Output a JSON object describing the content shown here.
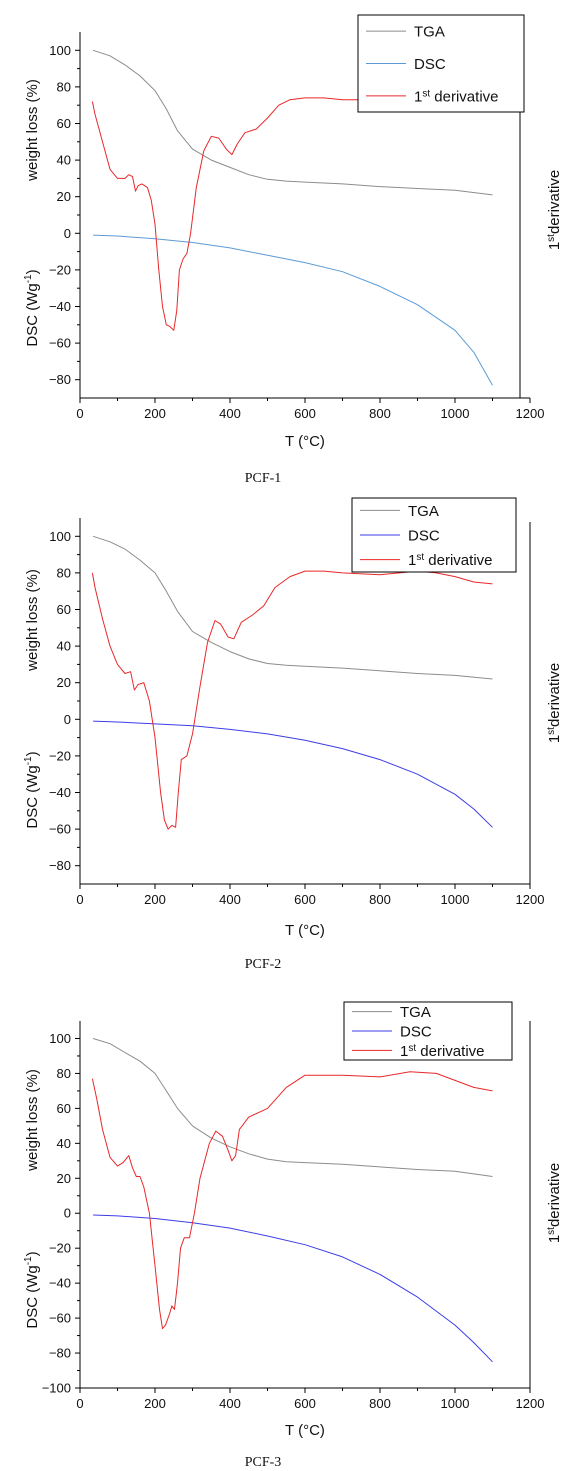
{
  "figure": {
    "captions": [
      "PCF-1",
      "PCF-2",
      "PCF-3"
    ]
  },
  "chart_data": [
    {
      "type": "line",
      "caption": "PCF-1",
      "xlabel": "T (°C)",
      "ylabel_top": "weight loss (%)",
      "ylabel_bottom": "DSC (Wg⁻¹)",
      "ylabel_right": "1st derivative",
      "xlim": [
        0,
        1200
      ],
      "ylim": [
        -90,
        110
      ],
      "xticks": [
        0,
        200,
        400,
        600,
        800,
        1000,
        1200
      ],
      "yticks": [
        100,
        80,
        60,
        40,
        20,
        0,
        -20,
        -40,
        -60,
        -80
      ],
      "grid": false,
      "legend_position": "top-right",
      "series": [
        {
          "name": "TGA",
          "color": "#8c8c8c",
          "x": [
            35,
            80,
            120,
            160,
            200,
            230,
            260,
            300,
            350,
            400,
            450,
            500,
            550,
            600,
            700,
            800,
            900,
            1000,
            1100
          ],
          "y": [
            100,
            97,
            92,
            86,
            78,
            68,
            56,
            46,
            40,
            36,
            32,
            29.5,
            28.5,
            28,
            27,
            25.5,
            24.5,
            23.5,
            21
          ]
        },
        {
          "name": "DSC",
          "color": "#5b9bd5",
          "x": [
            35,
            100,
            200,
            300,
            400,
            500,
            600,
            700,
            800,
            900,
            1000,
            1050,
            1100
          ],
          "y": [
            -1,
            -1.5,
            -3,
            -5,
            -8,
            -12,
            -16,
            -21,
            -29,
            -39,
            -53,
            -65,
            -83
          ]
        },
        {
          "name": "1st derivative",
          "name_base": "1",
          "name_sup": "st",
          "name_rest": " derivative",
          "color": "#e8282a",
          "x": [
            33,
            40,
            60,
            80,
            100,
            120,
            130,
            140,
            148,
            155,
            165,
            180,
            190,
            200,
            210,
            220,
            230,
            240,
            250,
            258,
            265,
            275,
            285,
            295,
            310,
            330,
            350,
            370,
            390,
            405,
            420,
            440,
            470,
            500,
            530,
            560,
            600,
            650,
            700,
            800,
            900,
            950,
            1000,
            1050,
            1100
          ],
          "y": [
            72,
            65,
            50,
            35,
            30,
            30,
            32,
            31,
            23,
            26,
            27,
            25,
            18,
            5,
            -20,
            -40,
            -50,
            -51,
            -53,
            -42,
            -20,
            -14,
            -11,
            0,
            25,
            45,
            53,
            52,
            46,
            43,
            49,
            55,
            57,
            63,
            70,
            73,
            74,
            74,
            73,
            73,
            74,
            73,
            71,
            70,
            70
          ]
        }
      ]
    },
    {
      "type": "line",
      "caption": "PCF-2",
      "xlabel": "T (°C)",
      "ylabel_top": "weight loss (%)",
      "ylabel_bottom": "DSC (Wg⁻¹)",
      "ylabel_right": "1st derivative",
      "xlim": [
        0,
        1200
      ],
      "ylim": [
        -90,
        110
      ],
      "xticks": [
        0,
        200,
        400,
        600,
        800,
        1000,
        1200
      ],
      "yticks": [
        100,
        80,
        60,
        40,
        20,
        0,
        -20,
        -40,
        -60,
        -80
      ],
      "grid": false,
      "legend_position": "top-right",
      "series": [
        {
          "name": "TGA",
          "color": "#8c8c8c",
          "x": [
            35,
            80,
            120,
            160,
            200,
            230,
            260,
            300,
            350,
            400,
            450,
            500,
            550,
            600,
            700,
            800,
            900,
            1000,
            1100
          ],
          "y": [
            100,
            97,
            93,
            87,
            80,
            70,
            59,
            48,
            42,
            37,
            33,
            30.5,
            29.5,
            29,
            28,
            26.5,
            25,
            24,
            22
          ]
        },
        {
          "name": "DSC",
          "color": "#3d3de8",
          "x": [
            35,
            100,
            200,
            300,
            400,
            500,
            600,
            700,
            800,
            900,
            1000,
            1050,
            1100
          ],
          "y": [
            -1,
            -1.5,
            -2.5,
            -3.5,
            -5.5,
            -8,
            -11.5,
            -16,
            -22,
            -30,
            -41,
            -49,
            -59
          ]
        },
        {
          "name": "1st derivative",
          "name_base": "1",
          "name_sup": "st",
          "name_rest": " derivative",
          "color": "#e8282a",
          "x": [
            33,
            40,
            60,
            80,
            100,
            120,
            135,
            145,
            155,
            170,
            185,
            200,
            215,
            225,
            235,
            245,
            255,
            262,
            270,
            285,
            300,
            320,
            340,
            360,
            375,
            395,
            410,
            430,
            460,
            490,
            520,
            560,
            600,
            650,
            700,
            800,
            900,
            950,
            1000,
            1050,
            1100
          ],
          "y": [
            80,
            72,
            55,
            40,
            30,
            25,
            26,
            16,
            19,
            20,
            10,
            -10,
            -40,
            -55,
            -60,
            -58,
            -59,
            -40,
            -22,
            -20,
            -8,
            18,
            42,
            54,
            52,
            45,
            44,
            53,
            57,
            62,
            72,
            78,
            81,
            81,
            80,
            79,
            81,
            80,
            78,
            75,
            74
          ]
        }
      ]
    },
    {
      "type": "line",
      "caption": "PCF-3",
      "xlabel": "T (°C)",
      "ylabel_top": "weight loss (%)",
      "ylabel_bottom": "DSC (Wg⁻¹)",
      "ylabel_right": "1st derivative",
      "xlim": [
        0,
        1200
      ],
      "ylim": [
        -100,
        110
      ],
      "xticks": [
        0,
        200,
        400,
        600,
        800,
        1000,
        1200
      ],
      "yticks": [
        100,
        80,
        60,
        40,
        20,
        0,
        -20,
        -40,
        -60,
        -80,
        -100
      ],
      "grid": false,
      "legend_position": "top-right",
      "series": [
        {
          "name": "TGA",
          "color": "#8c8c8c",
          "x": [
            35,
            80,
            120,
            160,
            200,
            230,
            260,
            300,
            350,
            400,
            450,
            500,
            550,
            600,
            700,
            800,
            900,
            1000,
            1100
          ],
          "y": [
            100,
            97,
            92,
            87,
            80,
            70,
            60,
            50,
            43,
            38,
            34,
            31,
            29.5,
            29,
            28,
            26.5,
            25,
            24,
            21
          ]
        },
        {
          "name": "DSC",
          "color": "#3d3de8",
          "x": [
            35,
            100,
            200,
            300,
            400,
            500,
            600,
            700,
            800,
            900,
            1000,
            1050,
            1100
          ],
          "y": [
            -1,
            -1.5,
            -3,
            -5.5,
            -8.5,
            -13,
            -18,
            -25,
            -35,
            -48,
            -64,
            -74,
            -85
          ]
        },
        {
          "name": "1st derivative",
          "name_base": "1",
          "name_sup": "st",
          "name_rest": " derivative",
          "color": "#e8282a",
          "x": [
            33,
            45,
            60,
            80,
            100,
            115,
            130,
            140,
            150,
            160,
            170,
            185,
            200,
            212,
            220,
            228,
            238,
            245,
            252,
            260,
            268,
            278,
            292,
            305,
            320,
            345,
            362,
            380,
            395,
            405,
            415,
            425,
            450,
            500,
            550,
            600,
            700,
            800,
            880,
            950,
            1000,
            1050,
            1100
          ],
          "y": [
            77,
            65,
            48,
            32,
            27,
            29,
            33,
            26,
            21,
            21,
            15,
            0,
            -30,
            -55,
            -66,
            -64,
            -58,
            -53,
            -55,
            -40,
            -20,
            -14,
            -14,
            0,
            20,
            40,
            47,
            44,
            36,
            30,
            33,
            48,
            55,
            60,
            72,
            79,
            79,
            78,
            81,
            80,
            76,
            72,
            70
          ]
        }
      ]
    }
  ]
}
